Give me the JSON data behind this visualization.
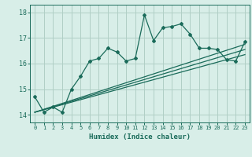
{
  "xlabel": "Humidex (Indice chaleur)",
  "ylabel": "",
  "xlim": [
    -0.5,
    23.5
  ],
  "ylim": [
    13.7,
    18.3
  ],
  "xticks": [
    0,
    1,
    2,
    3,
    4,
    5,
    6,
    7,
    8,
    9,
    10,
    11,
    12,
    13,
    14,
    15,
    16,
    17,
    18,
    19,
    20,
    21,
    22,
    23
  ],
  "yticks": [
    14,
    15,
    16,
    17,
    18
  ],
  "bg_color": "#d8eee8",
  "grid_color": "#b0cfc5",
  "line_color": "#1a6b5a",
  "main_x": [
    0,
    1,
    2,
    3,
    4,
    5,
    6,
    7,
    8,
    9,
    10,
    11,
    12,
    13,
    14,
    15,
    16,
    17,
    18,
    19,
    20,
    21,
    22,
    23
  ],
  "main_y": [
    14.7,
    14.1,
    14.3,
    14.1,
    15.0,
    15.5,
    16.1,
    16.2,
    16.6,
    16.45,
    16.1,
    16.2,
    17.9,
    16.9,
    17.4,
    17.45,
    17.55,
    17.15,
    16.6,
    16.6,
    16.55,
    16.15,
    16.1,
    16.85
  ],
  "trend1_x": [
    0,
    23
  ],
  "trend1_y": [
    14.1,
    16.75
  ],
  "trend2_x": [
    0,
    23
  ],
  "trend2_y": [
    14.1,
    16.55
  ],
  "trend3_x": [
    0,
    23
  ],
  "trend3_y": [
    14.1,
    16.35
  ]
}
